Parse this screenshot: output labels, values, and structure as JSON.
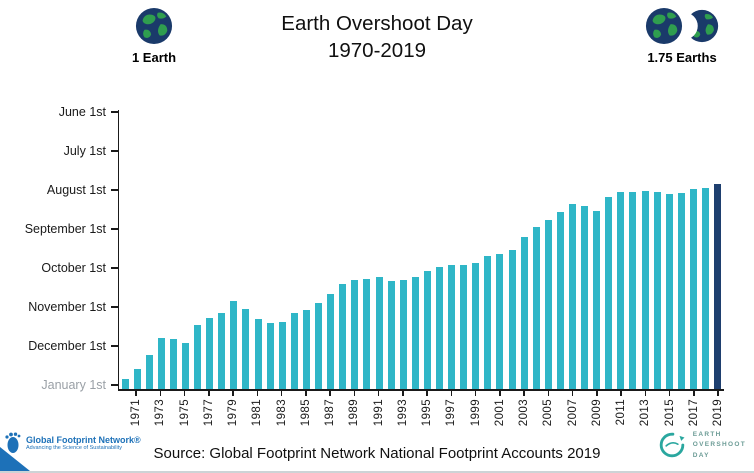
{
  "header": {
    "title_line1": "Earth Overshoot Day",
    "title_line2": "1970-2019",
    "left_earths_label": "1 Earth",
    "right_earths_label": "1.75 Earths"
  },
  "chart_data": {
    "type": "bar",
    "title": "Earth Overshoot Day 1970-2019",
    "y_axis_labels": [
      "June 1st",
      "July 1st",
      "August 1st",
      "September 1st",
      "October 1st",
      "November 1st",
      "December 1st",
      "January 1st"
    ],
    "y_axis_inverted": true,
    "x_tick_years": [
      1971,
      1973,
      1975,
      1977,
      1979,
      1981,
      1983,
      1985,
      1987,
      1989,
      1991,
      1993,
      1995,
      1997,
      1999,
      2001,
      2003,
      2005,
      2007,
      2009,
      2011,
      2013,
      2015,
      2017,
      2019
    ],
    "bar_color": "#2fb6c7",
    "highlight_color": "#1e3f6f",
    "highlight_year": 2019,
    "points": [
      {
        "year": 1970,
        "date": "Dec 29"
      },
      {
        "year": 1971,
        "date": "Dec 21"
      },
      {
        "year": 1972,
        "date": "Dec 10"
      },
      {
        "year": 1973,
        "date": "Nov 26"
      },
      {
        "year": 1974,
        "date": "Nov 27"
      },
      {
        "year": 1975,
        "date": "Nov 30"
      },
      {
        "year": 1976,
        "date": "Nov 16"
      },
      {
        "year": 1977,
        "date": "Nov 11"
      },
      {
        "year": 1978,
        "date": "Nov 7"
      },
      {
        "year": 1979,
        "date": "Oct 29"
      },
      {
        "year": 1980,
        "date": "Nov 4"
      },
      {
        "year": 1981,
        "date": "Nov 12"
      },
      {
        "year": 1982,
        "date": "Nov 15"
      },
      {
        "year": 1983,
        "date": "Nov 14"
      },
      {
        "year": 1984,
        "date": "Nov 7"
      },
      {
        "year": 1985,
        "date": "Nov 5"
      },
      {
        "year": 1986,
        "date": "Oct 30"
      },
      {
        "year": 1987,
        "date": "Oct 23"
      },
      {
        "year": 1988,
        "date": "Oct 15"
      },
      {
        "year": 1989,
        "date": "Oct 12"
      },
      {
        "year": 1990,
        "date": "Oct 11"
      },
      {
        "year": 1991,
        "date": "Oct 10"
      },
      {
        "year": 1992,
        "date": "Oct 13"
      },
      {
        "year": 1993,
        "date": "Oct 12"
      },
      {
        "year": 1994,
        "date": "Oct 10"
      },
      {
        "year": 1995,
        "date": "Oct 5"
      },
      {
        "year": 1996,
        "date": "Oct 2"
      },
      {
        "year": 1997,
        "date": "Sep 30"
      },
      {
        "year": 1998,
        "date": "Sep 30"
      },
      {
        "year": 1999,
        "date": "Sep 29"
      },
      {
        "year": 2000,
        "date": "Sep 23"
      },
      {
        "year": 2001,
        "date": "Sep 22"
      },
      {
        "year": 2002,
        "date": "Sep 19"
      },
      {
        "year": 2003,
        "date": "Sep 9"
      },
      {
        "year": 2004,
        "date": "Sep 1"
      },
      {
        "year": 2005,
        "date": "Aug 26"
      },
      {
        "year": 2006,
        "date": "Aug 20"
      },
      {
        "year": 2007,
        "date": "Aug 14"
      },
      {
        "year": 2008,
        "date": "Aug 15"
      },
      {
        "year": 2009,
        "date": "Aug 19"
      },
      {
        "year": 2010,
        "date": "Aug 8"
      },
      {
        "year": 2011,
        "date": "Aug 4"
      },
      {
        "year": 2012,
        "date": "Aug 4"
      },
      {
        "year": 2013,
        "date": "Aug 3"
      },
      {
        "year": 2014,
        "date": "Aug 4"
      },
      {
        "year": 2015,
        "date": "Aug 6"
      },
      {
        "year": 2016,
        "date": "Aug 5"
      },
      {
        "year": 2017,
        "date": "Aug 2"
      },
      {
        "year": 2018,
        "date": "Aug 1"
      },
      {
        "year": 2019,
        "date": "Jul 29"
      }
    ]
  },
  "footer": {
    "source": "Source: Global Footprint Network National Footprint Accounts 2019",
    "gfn_logo": {
      "name": "Global Footprint Network®",
      "tagline": "Advancing the Science of Sustainability"
    },
    "eod_logo": {
      "line1": "EARTH",
      "line2": "OVERSHOOT",
      "line3": "DAY"
    }
  }
}
